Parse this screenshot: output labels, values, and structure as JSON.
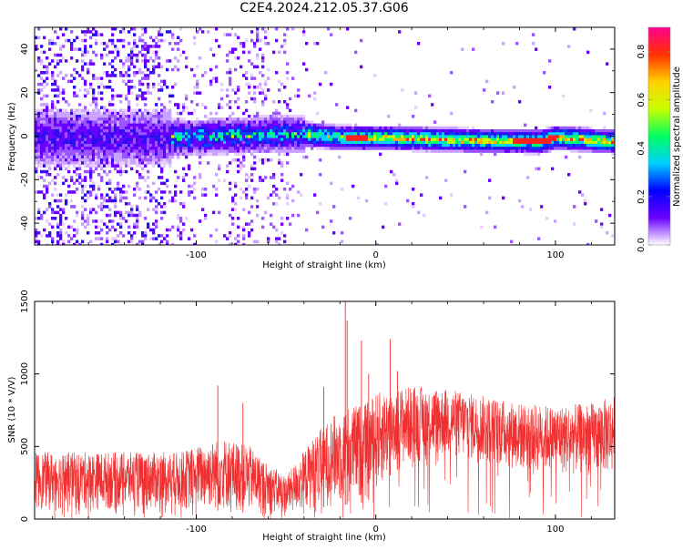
{
  "title": "C2E4.2024.212.05.37.G06",
  "chart_data": [
    {
      "type": "heatmap",
      "name": "spectrogram",
      "xlabel": "Height of straight line (km)",
      "ylabel": "Frequency (Hz)",
      "xlim": [
        -190,
        133
      ],
      "ylim": [
        -50,
        50
      ],
      "xticks": [
        -100,
        0,
        100
      ],
      "yticks": [
        -40,
        -20,
        0,
        20,
        40
      ],
      "xtick_labels": [
        "-100",
        "0",
        "100"
      ],
      "ytick_labels": [
        "-40",
        "-20",
        "0",
        "20",
        "40"
      ],
      "ridge": {
        "x": [
          -190,
          -120,
          -100,
          -60,
          -40,
          -20,
          0,
          40,
          90,
          100,
          133
        ],
        "y": [
          0,
          0,
          0,
          1.5,
          1.5,
          0,
          0,
          -1,
          -2,
          0,
          -2
        ]
      },
      "colorbar": {
        "label": "Normalized spectral amplitude",
        "range": [
          0,
          0.9
        ],
        "ticks": [
          0.0,
          0.2,
          0.4,
          0.6,
          0.8
        ],
        "tick_labels": [
          "0.0",
          "0.2",
          "0.4",
          "0.6",
          "0.8"
        ],
        "colors": [
          "#ffffff",
          "#6a00ff",
          "#0000ff",
          "#00d0ff",
          "#00ff60",
          "#c8ff00",
          "#ffd000",
          "#ff3000",
          "#ff0090"
        ]
      }
    },
    {
      "type": "line",
      "name": "snr",
      "color": "#f03030",
      "xlabel": "Height of straight line (km)",
      "ylabel": "SNR (10 * V/V)",
      "xlim": [
        -190,
        133
      ],
      "ylim": [
        0,
        1500
      ],
      "xticks": [
        -100,
        0,
        100
      ],
      "yticks": [
        0,
        500,
        1000,
        1500
      ],
      "xtick_labels": [
        "-100",
        "0",
        "100"
      ],
      "ytick_labels": [
        "0",
        "500",
        "1000",
        "1500"
      ],
      "envelope": {
        "x": [
          -190,
          -160,
          -130,
          -110,
          -95,
          -85,
          -70,
          -60,
          -50,
          -45,
          -35,
          -25,
          -15,
          -5,
          0,
          10,
          20,
          40,
          60,
          80,
          100,
          120,
          133
        ],
        "low": [
          60,
          60,
          60,
          60,
          60,
          60,
          40,
          30,
          30,
          40,
          70,
          90,
          100,
          120,
          180,
          330,
          380,
          420,
          380,
          330,
          300,
          300,
          300
        ],
        "high": [
          460,
          460,
          460,
          460,
          520,
          560,
          500,
          380,
          300,
          380,
          560,
          700,
          780,
          800,
          870,
          900,
          920,
          900,
          850,
          800,
          780,
          800,
          850
        ]
      },
      "spikes": [
        {
          "x": -88,
          "y": 920
        },
        {
          "x": -74,
          "y": 800
        },
        {
          "x": -29,
          "y": 910
        },
        {
          "x": -17,
          "y": 1500
        },
        {
          "x": -16,
          "y": 1370
        },
        {
          "x": -8,
          "y": 1230
        },
        {
          "x": -4,
          "y": 1000
        },
        {
          "x": 8,
          "y": 1240
        },
        {
          "x": 12,
          "y": 1020
        }
      ]
    }
  ]
}
